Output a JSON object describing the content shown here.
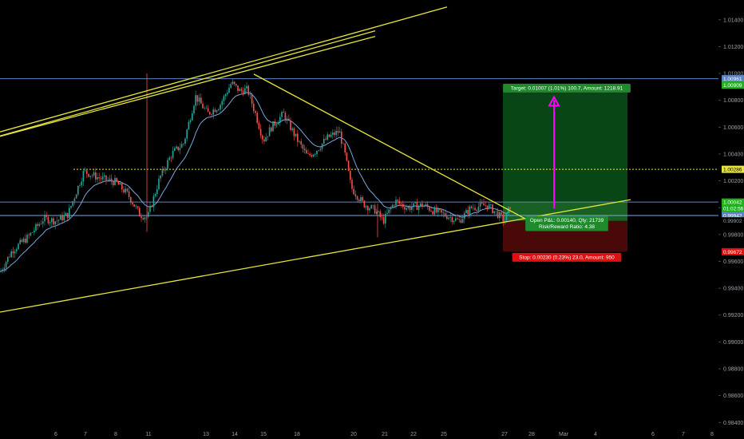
{
  "chart_data": {
    "type": "candlestick",
    "y_ticks": [
      "1.01400",
      "1.01200",
      "1.01000",
      "1.00800",
      "1.00600",
      "1.00400",
      "1.00200",
      "1.00000",
      "0.99800",
      "0.99600",
      "0.99400",
      "0.99200",
      "0.99000",
      "0.98800",
      "0.98600",
      "0.98400"
    ],
    "x_ticks": [
      "6",
      "7",
      "8",
      "11",
      "13",
      "14",
      "15",
      "18",
      "20",
      "21",
      "22",
      "25",
      "27",
      "28",
      "Mar",
      "4",
      "6",
      "7",
      "8"
    ],
    "ylim": [
      0.98385,
      1.01495
    ],
    "price_tags": [
      {
        "text": "1.00961",
        "value": 1.00961,
        "bg": "#5b84c4",
        "fg": "#ffffff"
      },
      {
        "text": "1.00909",
        "value": 1.00909,
        "bg": "#20b020",
        "fg": "#ffffff"
      },
      {
        "text": "1.00286",
        "value": 1.00286,
        "bg": "#e6e63c",
        "fg": "#000000"
      },
      {
        "text": "1.00042",
        "value": 1.00042,
        "bg": "#20b020",
        "fg": "#ffffff"
      },
      {
        "text": "01:02:56",
        "value": 0.99995,
        "bg": "#20b020",
        "fg": "#ffffff"
      },
      {
        "text": "0.99942",
        "value": 0.99942,
        "bg": "#5b84c4",
        "fg": "#ffffff"
      },
      {
        "text": "0.99902",
        "value": 0.99902,
        "bg": "#000000",
        "fg": "#9aa0a6"
      },
      {
        "text": "0.99672",
        "value": 0.99672,
        "bg": "#e01010",
        "fg": "#ffffff"
      }
    ],
    "horizontal_levels": [
      {
        "value": 1.00961,
        "color": "#5b84c4",
        "style": "solid"
      },
      {
        "value": 1.00286,
        "color": "#e6e63c",
        "style": "dotted"
      },
      {
        "value": 1.00042,
        "color": "#5b84c4",
        "style": "solid"
      },
      {
        "value": 0.99942,
        "color": "#7aa7e0",
        "style": "solid"
      }
    ],
    "trendlines": [
      {
        "x1": 0,
        "y1": 1.00565,
        "x2": 560,
        "y2": 1.01495,
        "color": "#e6e63c"
      },
      {
        "x1": 0,
        "y1": 1.00535,
        "x2": 470,
        "y2": 1.01318,
        "color": "#e6e63c"
      },
      {
        "x1": 0,
        "y1": 0.99222,
        "x2": 790,
        "y2": 1.0006,
        "color": "#e6e63c"
      },
      {
        "x1": 318,
        "y1": 1.00995,
        "x2": 662,
        "y2": 0.99905,
        "color": "#e6e63c"
      }
    ],
    "position": {
      "target_text": "Target: 0.01007 (1.01%) 100.7, Amount: 1218.91",
      "stop_text": "Stop: 0.00230 (0.23%) 23.0, Amount: 950",
      "open_pl_text": "Open P&L: 0.00140, Qty: 21739",
      "rr_text": "Risk/Reward Ratio: 4.38",
      "entry": 0.99902,
      "target": 1.00909,
      "stop": 0.99672,
      "profit_color": "#0a4a16",
      "loss_color": "#4d0a0a"
    },
    "arrow_color": "#ff00ff",
    "up_color": "#26a69a",
    "down_color": "#ef5350",
    "ma_color": "#7aa7e0"
  }
}
